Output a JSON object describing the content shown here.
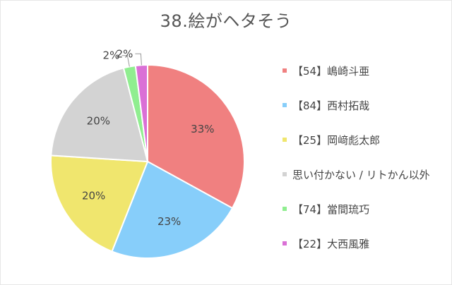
{
  "chart_data": {
    "type": "pie",
    "title": "38.絵がヘタそう",
    "legend_position": "right",
    "slices": [
      {
        "label": "【54】嶋崎斗亜",
        "value": 33,
        "display": "33%",
        "color": "#F08080"
      },
      {
        "label": "【84】西村拓哉",
        "value": 23,
        "display": "23%",
        "color": "#87CEFA"
      },
      {
        "label": "【25】岡﨑彪太郎",
        "value": 20,
        "display": "20%",
        "color": "#F0E66E"
      },
      {
        "label": "思い付かない / リトかん以外",
        "value": 20,
        "display": "20%",
        "color": "#D3D3D3"
      },
      {
        "label": "【74】當間琉巧",
        "value": 2,
        "display": "2%",
        "color": "#90EE90"
      },
      {
        "label": "【22】大西風雅",
        "value": 2,
        "display": "2%",
        "color": "#DA70D6"
      }
    ]
  }
}
